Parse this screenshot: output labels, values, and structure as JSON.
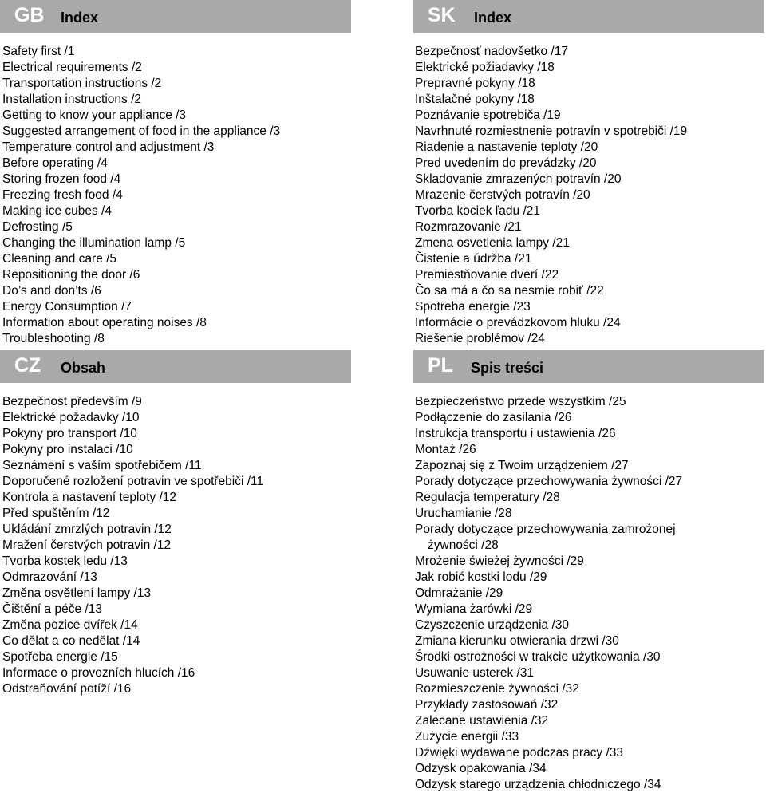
{
  "gb": {
    "code": "GB",
    "title": "Index",
    "items": [
      "Safety first /1",
      "Electrical requirements /2",
      "Transportation instructions /2",
      "Installation instructions /2",
      "Getting to know your appliance /3",
      "Suggested arrangement of food in the appliance /3",
      "Temperature control and adjustment /3",
      "Before operating /4",
      "Storing frozen food /4",
      "Freezing fresh food /4",
      "Making ice cubes /4",
      "Defrosting /5",
      "Changing the illumination lamp /5",
      "Cleaning and care /5",
      "Repositioning the door /6",
      "Do’s and don’ts /6",
      "Energy Consumption /7",
      "Information about operating noises /8",
      "Troubleshooting /8"
    ]
  },
  "sk": {
    "code": "SK",
    "title": "Index",
    "items": [
      "Bezpečnosť nadovšetko /17",
      "Elektrické požiadavky /18",
      "Prepravné pokyny /18",
      "Inštalačné pokyny /18",
      "Poznávanie spotrebiča /19",
      "Navrhnuté rozmiestnenie potravín v spotrebiči /19",
      "Riadenie a nastavenie teploty /20",
      "Pred uvedením do prevádzky /20",
      "Skladovanie zmrazených potravín /20",
      "Mrazenie čerstvých potravín /20",
      "Tvorba kociek ľadu /21",
      "Rozmrazovanie /21",
      "Zmena osvetlenia lampy /21",
      "Čistenie a údržba /21",
      "Premiestňovanie dverí /22",
      "Čo sa má a čo sa nesmie robiť /22",
      "Spotreba energie /23",
      "Informácie o prevádzkovom hluku /24",
      "Riešenie problémov /24"
    ]
  },
  "cz": {
    "code": "CZ",
    "title": "Obsah",
    "items": [
      "Bezpečnost především /9",
      "Elektrické požadavky /10",
      "Pokyny pro transport /10",
      "Pokyny pro instalaci /10",
      "Seznámení s vaším spotřebičem /11",
      "Doporučené rozložení potravin ve spotřebiči /11",
      "Kontrola a nastavení teploty /12",
      "Před spuštěním /12",
      "Ukládání zmrzlých potravin /12",
      "Mražení čerstvých potravin /12",
      "Tvorba kostek ledu /13",
      "Odmrazování /13",
      "Změna osvětlení lampy /13",
      "Čištění a péče /13",
      "Změna pozice dvířek /14",
      "Co dělat a co nedělat /14",
      "Spotřeba energie /15",
      "Informace o provozních hlucích /16",
      "Odstraňování potíží /16"
    ]
  },
  "pl": {
    "code": "PL",
    "title": "Spis treści",
    "items": [
      "Bezpieczeństwo przede wszystkim /25",
      "Podłączenie do zasilania /26",
      "Instrukcja transportu i ustawienia /26",
      "Montaż /26",
      "Zapoznaj się z Twoim urządzeniem /27",
      "Porady dotyczące przechowywania żywności /27",
      "Regulacja temperatury /28",
      "Uruchamianie /28",
      "Porady dotyczące przechowywania zamrożonej",
      "żywności /28",
      "Mrożenie świeżej żywności /29",
      "Jak robić kostki lodu /29",
      "Odmrażanie /29",
      "Wymiana żarówki /29",
      "Czyszczenie urządzenia /30",
      "Zmiana kierunku otwierania drzwi /30",
      "Środki ostrożności w trakcie użytkowania /30",
      "Usuwanie usterek /31",
      "Rozmieszczenie żywności /32",
      "Przykłady zastosowań /32",
      "Zalecane ustawienia /32",
      "Zużycie energii /33",
      "Dźwięki wydawane podczas pracy /33",
      "Odzysk opakowania /34",
      "Odzysk starego urządzenia chłodniczego /34"
    ]
  },
  "colors": {
    "header_bg": "#a9a9a9",
    "code_text": "#ffffff",
    "body_text": "#000000"
  }
}
